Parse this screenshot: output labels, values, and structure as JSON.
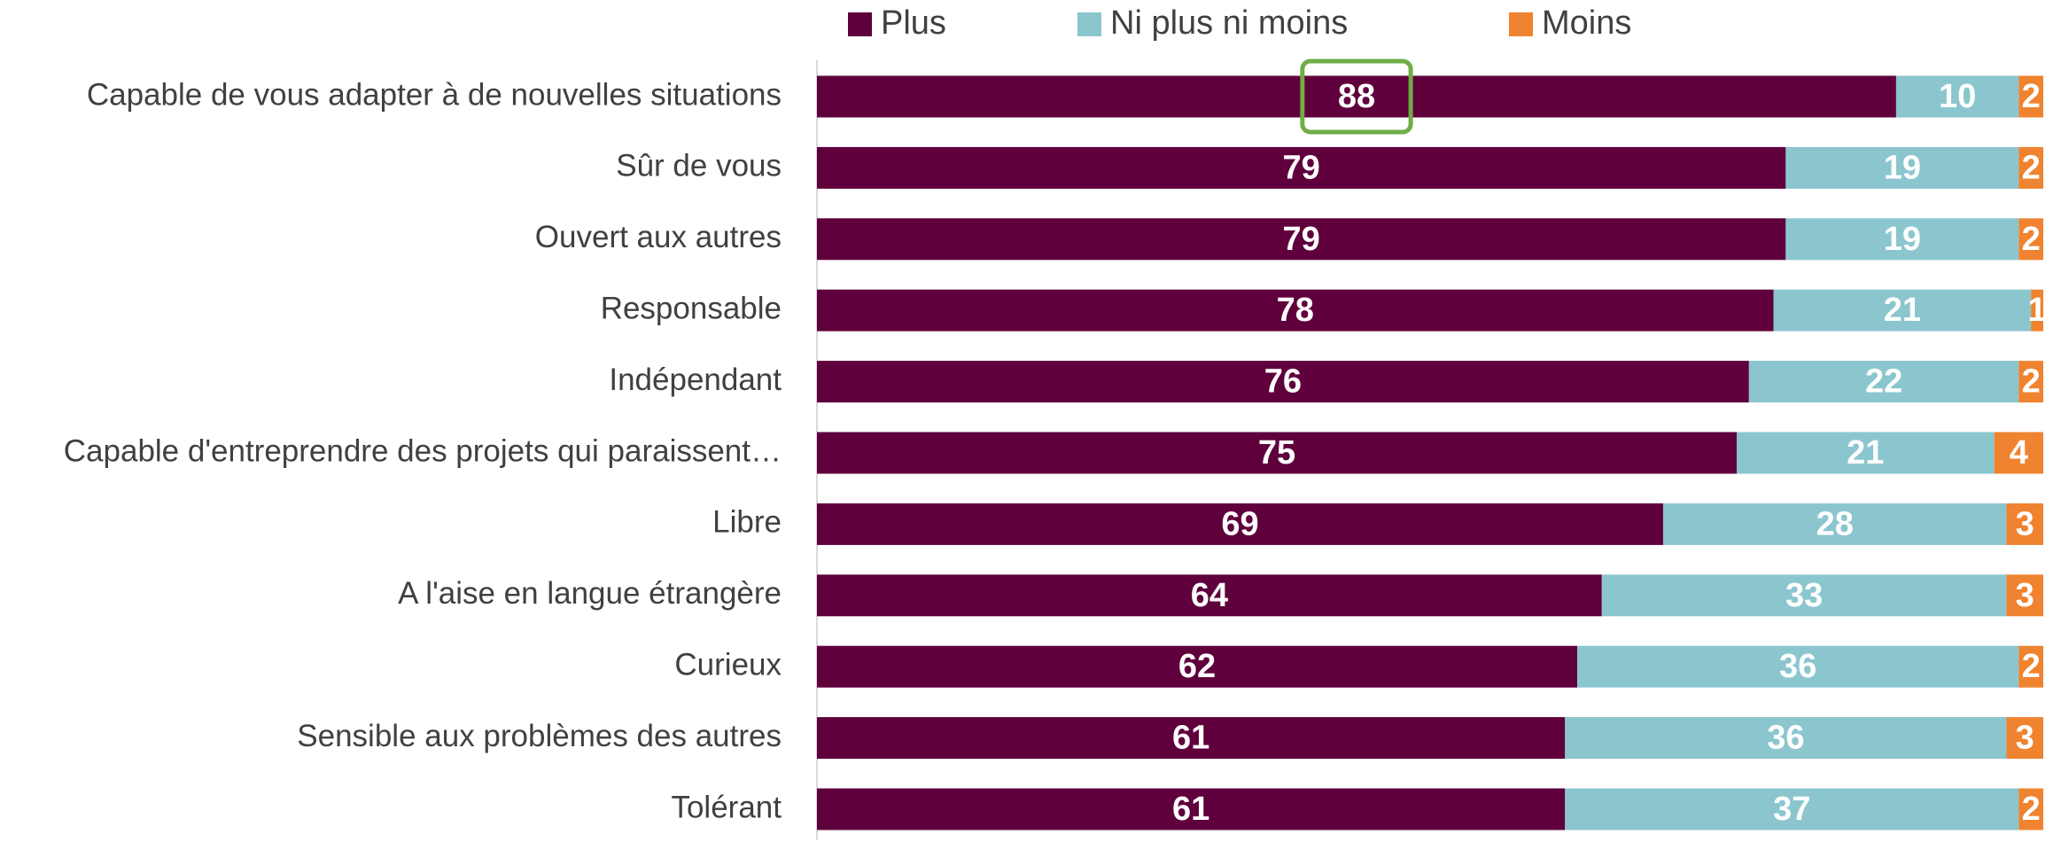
{
  "chart_data": {
    "type": "stacked-barh",
    "categories": [
      "Capable de vous adapter à de nouvelles situations",
      "Sûr de vous",
      "Ouvert aux autres",
      "Responsable",
      "Indépendant",
      "Capable d'entreprendre des projets qui paraissent…",
      "Libre",
      "A l'aise en langue étrangère",
      "Curieux",
      "Sensible aux problèmes des autres",
      "Tolérant"
    ],
    "series": [
      {
        "name": "Plus",
        "color": "#5f003c",
        "values": [
          88,
          79,
          79,
          78,
          76,
          75,
          69,
          64,
          62,
          61,
          61
        ]
      },
      {
        "name": "Ni plus ni moins",
        "color": "#8bc6cf",
        "values": [
          10,
          19,
          19,
          21,
          22,
          21,
          28,
          33,
          36,
          36,
          37
        ]
      },
      {
        "name": "Moins",
        "color": "#f0832f",
        "values": [
          2,
          2,
          2,
          1,
          2,
          4,
          3,
          3,
          2,
          3,
          2
        ]
      }
    ],
    "xlim": [
      0,
      100
    ],
    "legend": "top"
  }
}
